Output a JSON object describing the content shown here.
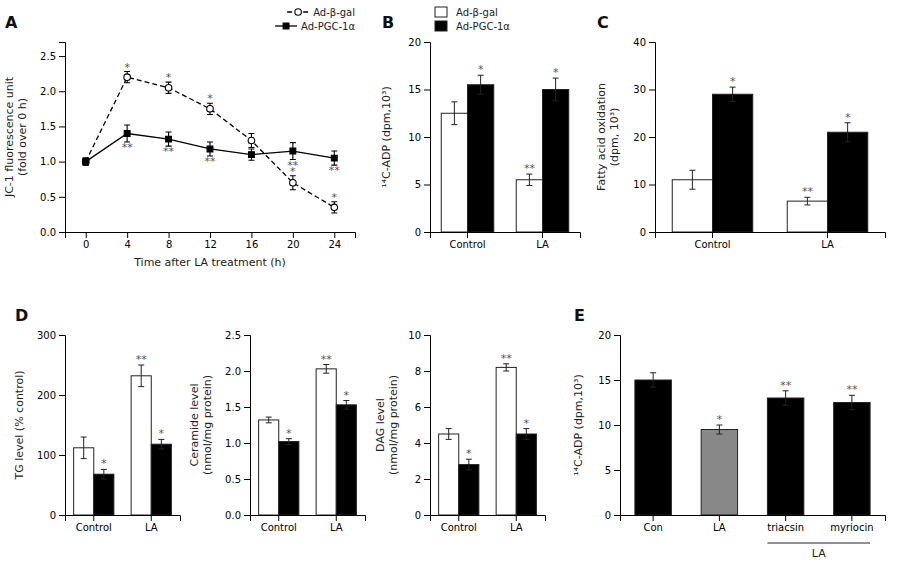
{
  "chart_data": [
    {
      "type": "line",
      "title": "A",
      "xlabel": "Time after LA treatment (h)",
      "ylabel": "JC-1 fluorescence unit\n(fold over 0 h)",
      "x": [
        0,
        4,
        8,
        12,
        16,
        20,
        24
      ],
      "series": [
        {
          "name": "Ad-β-gal",
          "color": "#000000",
          "marker": "circle-open",
          "line_style": "dashed",
          "values": [
            1.0,
            2.2,
            2.05,
            1.75,
            1.3,
            0.7,
            0.35
          ],
          "errors": [
            0.05,
            0.08,
            0.08,
            0.08,
            0.1,
            0.1,
            0.08
          ],
          "value_annotations": [
            null,
            "*",
            "*",
            "*",
            null,
            "*",
            "*"
          ]
        },
        {
          "name": "Ad-PGC-1α",
          "color": "#000000",
          "marker": "square",
          "line_style": "solid",
          "values": [
            1.0,
            1.4,
            1.32,
            1.18,
            1.1,
            1.15,
            1.05
          ],
          "errors": [
            0.05,
            0.12,
            0.1,
            0.1,
            0.08,
            0.12,
            0.1
          ],
          "value_annotations": [
            null,
            "**",
            "**",
            "**",
            null,
            "**",
            "**"
          ]
        }
      ],
      "xlim": [
        -2,
        26
      ],
      "xticks": [
        0,
        4,
        8,
        12,
        16,
        20,
        24
      ],
      "ylim": [
        0,
        2.7
      ],
      "yticks": [
        {
          "value": 0,
          "label": "0.0"
        },
        {
          "value": 0.5,
          "label": "0.5"
        },
        {
          "value": 1.0,
          "label": "1.0"
        },
        {
          "value": 1.5,
          "label": "1.5"
        },
        {
          "value": 2.0,
          "label": "2.0"
        },
        {
          "value": 2.5,
          "label": "2.5"
        }
      ],
      "legend": "upper right"
    },
    {
      "type": "bar",
      "title": "B",
      "ylabel": "¹⁴C-ADP (dpm,10³)",
      "categories": [
        "Control",
        "LA"
      ],
      "series": [
        {
          "name": "Ad-β-gal",
          "color": "#ffffff",
          "values": [
            12.5,
            5.5
          ],
          "errors": [
            1.2,
            0.6
          ],
          "value_annotations": [
            null,
            "**"
          ]
        },
        {
          "name": "Ad-PGC-1α",
          "color": "#000000",
          "values": [
            15.5,
            15.0
          ],
          "errors": [
            1.0,
            1.2
          ],
          "value_annotations": [
            "*",
            "*"
          ]
        }
      ],
      "ylim": [
        0,
        20
      ],
      "yticks": [
        0,
        5,
        10,
        15,
        20
      ],
      "legend": "upper left"
    },
    {
      "type": "bar",
      "title": "C",
      "ylabel": "Fatty acid oxidation\n(dpm, 10³)",
      "categories": [
        "Control",
        "LA"
      ],
      "series": [
        {
          "color": "#ffffff",
          "values": [
            11.0,
            6.5
          ],
          "errors": [
            2.0,
            0.8
          ],
          "value_annotations": [
            null,
            "**"
          ]
        },
        {
          "color": "#000000",
          "values": [
            29.0,
            21.0
          ],
          "errors": [
            1.5,
            2.0
          ],
          "value_annotations": [
            "*",
            "*"
          ]
        }
      ],
      "ylim": [
        0,
        40
      ],
      "yticks": [
        0,
        10,
        20,
        30,
        40
      ]
    },
    {
      "type": "bar",
      "title": "D",
      "ylabel": "TG level (% control)",
      "categories": [
        "Control",
        "LA"
      ],
      "series": [
        {
          "color": "#ffffff",
          "values": [
            112,
            232
          ],
          "errors": [
            18,
            18
          ],
          "value_annotations": [
            null,
            "**"
          ]
        },
        {
          "color": "#000000",
          "values": [
            68,
            118
          ],
          "errors": [
            8,
            8
          ],
          "value_annotations": [
            "*",
            "*"
          ]
        }
      ],
      "ylim": [
        0,
        300
      ],
      "yticks": [
        0,
        100,
        200,
        300
      ]
    },
    {
      "type": "bar",
      "ylabel": "Ceramide level\n(nmol/mg protein)",
      "categories": [
        "Control",
        "LA"
      ],
      "series": [
        {
          "color": "#ffffff",
          "values": [
            1.32,
            2.03
          ],
          "errors": [
            0.04,
            0.06
          ],
          "value_annotations": [
            null,
            "**"
          ]
        },
        {
          "color": "#000000",
          "values": [
            1.02,
            1.53
          ],
          "errors": [
            0.04,
            0.06
          ],
          "value_annotations": [
            "*",
            "*"
          ]
        }
      ],
      "ylim": [
        0,
        2.5
      ],
      "yticks": [
        {
          "value": 0,
          "label": "0.0"
        },
        {
          "value": 0.5,
          "label": "0.5"
        },
        {
          "value": 1.0,
          "label": "1.0"
        },
        {
          "value": 1.5,
          "label": "1.5"
        },
        {
          "value": 2.0,
          "label": "2.0"
        },
        {
          "value": 2.5,
          "label": "2.5"
        }
      ]
    },
    {
      "type": "bar",
      "ylabel": "DAG level\n(nmol/mg protein)",
      "categories": [
        "Control",
        "LA"
      ],
      "series": [
        {
          "color": "#ffffff",
          "values": [
            4.5,
            8.2
          ],
          "errors": [
            0.3,
            0.2
          ],
          "value_annotations": [
            null,
            "**"
          ]
        },
        {
          "color": "#000000",
          "values": [
            2.8,
            4.5
          ],
          "errors": [
            0.3,
            0.3
          ],
          "value_annotations": [
            "*",
            "*"
          ]
        }
      ],
      "ylim": [
        0,
        10
      ],
      "yticks": [
        0,
        2,
        4,
        6,
        8,
        10
      ]
    },
    {
      "type": "bar",
      "title": "E",
      "ylabel": "¹⁴C-ADP (dpm,10³)",
      "categories": [
        "Con",
        "LA",
        "triacsin",
        "myriocin"
      ],
      "values": [
        15.0,
        9.5,
        13.0,
        12.5
      ],
      "errors": [
        0.8,
        0.5,
        0.8,
        0.8
      ],
      "colors": [
        "#000000",
        "#888888",
        "#000000",
        "#000000"
      ],
      "value_annotations": [
        null,
        "*",
        "**",
        "**"
      ],
      "annotations": [
        {
          "text": "LA",
          "from": "triacsin",
          "to": "myriocin"
        }
      ],
      "ylim": [
        0,
        20
      ],
      "yticks": [
        0,
        5,
        10,
        15,
        20
      ]
    }
  ]
}
